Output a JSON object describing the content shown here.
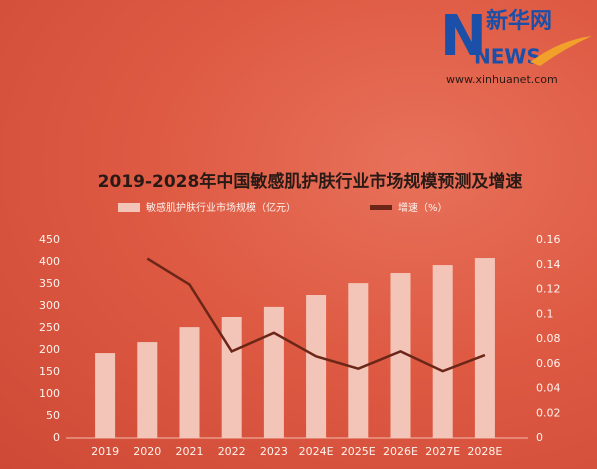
{
  "logo": {
    "name": "新华网",
    "brand": "NEWS",
    "url": "www.xinhuanet.com"
  },
  "chart_data": {
    "type": "bar-line",
    "title": "2019-2028年中国敏感肌护肤行业市场规模预测及增速",
    "categories": [
      "2019",
      "2020",
      "2021",
      "2022",
      "2023",
      "2024E",
      "2025E",
      "2026E",
      "2027E",
      "2028E"
    ],
    "series": [
      {
        "name": "敏感肌护肤行业市场规模（亿元）",
        "type": "bar",
        "color": "#f3c5b9",
        "values": [
          193,
          218,
          252,
          275,
          298,
          325,
          352,
          375,
          393,
          409
        ]
      },
      {
        "name": "增速（%）",
        "type": "line",
        "axis": "y2",
        "color": "#6b2618",
        "values": [
          null,
          0.145,
          0.124,
          0.07,
          0.085,
          0.066,
          0.056,
          0.07,
          0.054,
          0.067
        ]
      }
    ],
    "ylim": [
      0,
      450
    ],
    "yticks": [
      0,
      50,
      100,
      150,
      200,
      250,
      300,
      350,
      400,
      450
    ],
    "y2lim": [
      0,
      0.16
    ],
    "y2ticks": [
      0,
      0.02,
      0.04,
      0.06,
      0.08,
      0.1,
      0.12,
      0.14,
      0.16
    ],
    "grid": false
  }
}
